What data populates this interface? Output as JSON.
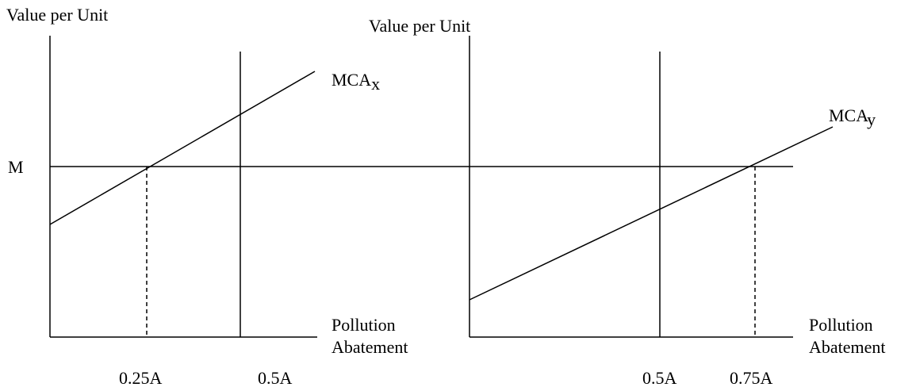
{
  "left": {
    "y_label": "Value per Unit",
    "level_label": "M",
    "curve": {
      "text": "MCA",
      "sub": "x"
    },
    "x_label": [
      "Pollution",
      "Abatement"
    ],
    "ticks": [
      "0.25A",
      "0.5A"
    ]
  },
  "right": {
    "y_label": "Value per Unit",
    "curve": {
      "text": "MCA",
      "sub": "y"
    },
    "x_label": [
      "Pollution",
      "Abatement"
    ],
    "ticks": [
      "0.5A",
      "0.75A"
    ]
  }
}
